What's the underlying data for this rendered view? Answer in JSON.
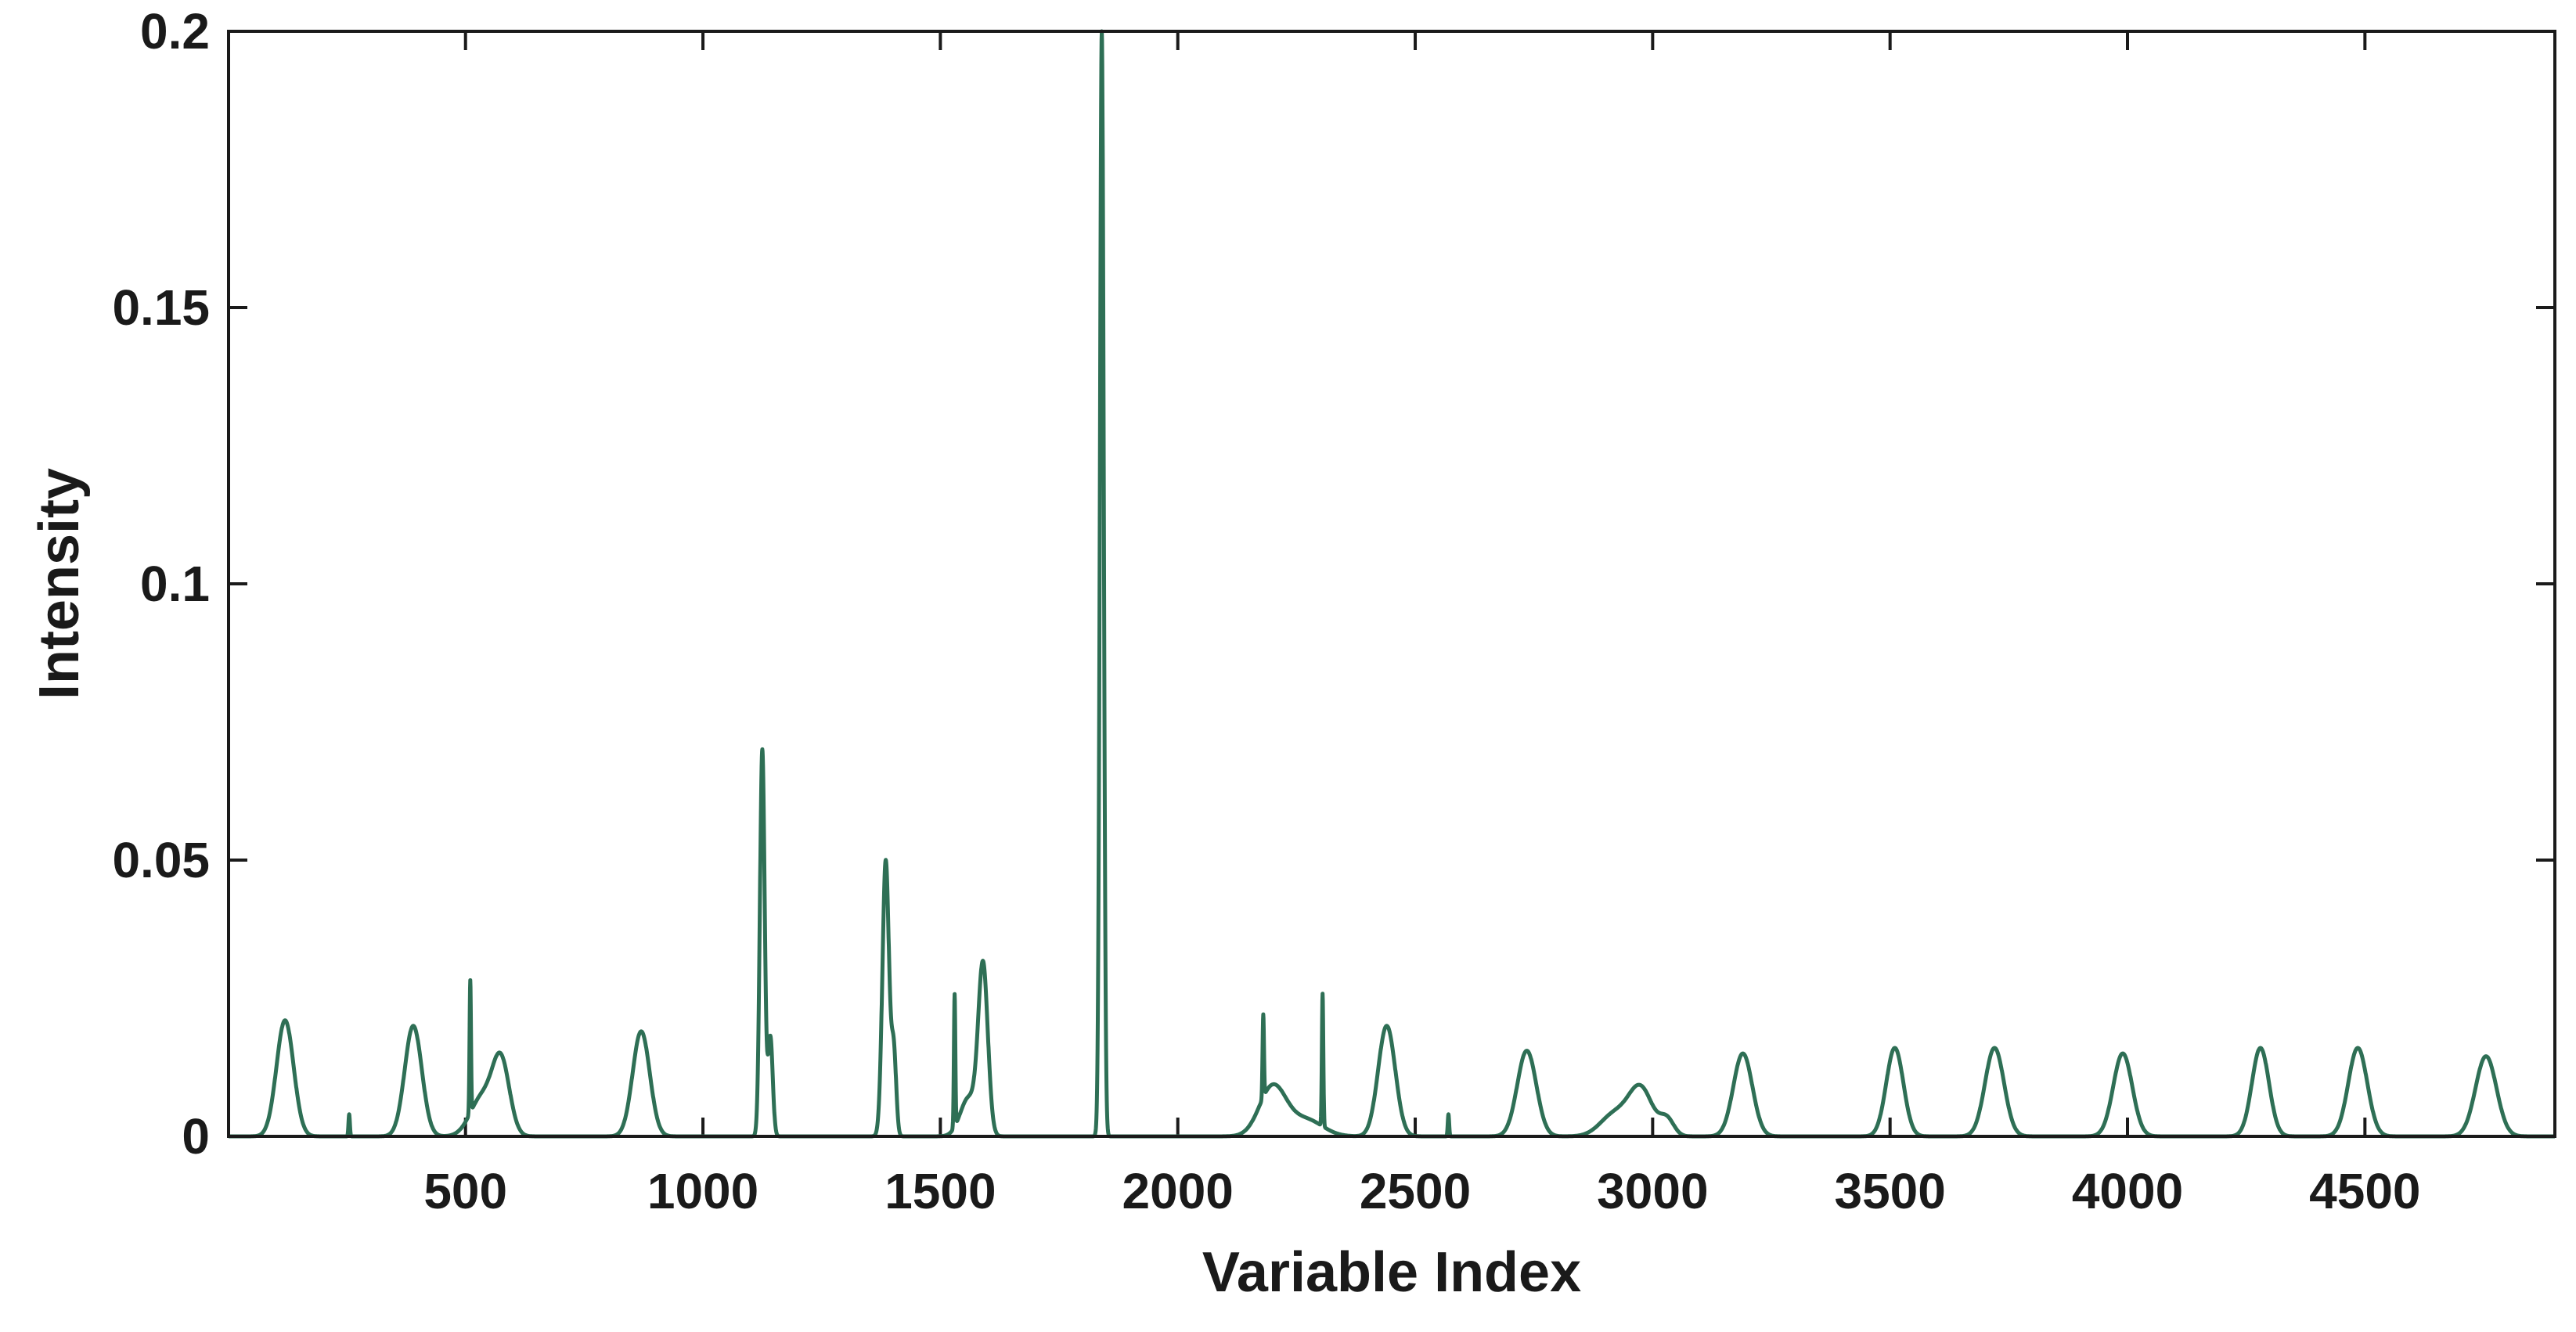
{
  "chart_data": {
    "type": "line",
    "title": "",
    "xlabel": "Variable Index",
    "ylabel": "Intensity",
    "xlim": [
      1,
      4900
    ],
    "ylim": [
      0,
      0.2
    ],
    "x_ticks": [
      500,
      1000,
      1500,
      2000,
      2500,
      3000,
      3500,
      4000,
      4500
    ],
    "x_tick_labels": [
      "500",
      "1000",
      "1500",
      "2000",
      "2500",
      "3000",
      "3500",
      "4000",
      "4500"
    ],
    "y_ticks": [
      0,
      0.05,
      0.1,
      0.15,
      0.2
    ],
    "y_tick_labels": [
      "0",
      "0.05",
      "0.1",
      "0.15",
      "0.2"
    ],
    "grid": false,
    "legend": "none",
    "line_color": "#2e6f55",
    "series": [
      {
        "peaks": [
          {
            "center": 120,
            "height": 0.021,
            "width": 18
          },
          {
            "center": 255,
            "height": 0.004,
            "width": 1.5
          },
          {
            "center": 390,
            "height": 0.02,
            "width": 18
          },
          {
            "center": 510,
            "height": 0.024,
            "width": 1.5
          },
          {
            "center": 535,
            "height": 0.007,
            "width": 25
          },
          {
            "center": 575,
            "height": 0.013,
            "width": 18
          },
          {
            "center": 870,
            "height": 0.019,
            "width": 18
          },
          {
            "center": 1125,
            "height": 0.07,
            "width": 5
          },
          {
            "center": 1142,
            "height": 0.018,
            "width": 5
          },
          {
            "center": 1385,
            "height": 0.05,
            "width": 7
          },
          {
            "center": 1402,
            "height": 0.015,
            "width": 5
          },
          {
            "center": 1530,
            "height": 0.024,
            "width": 1.5
          },
          {
            "center": 1560,
            "height": 0.007,
            "width": 18
          },
          {
            "center": 1590,
            "height": 0.03,
            "width": 10
          },
          {
            "center": 1840,
            "height": 0.2,
            "width": 4
          },
          {
            "center": 2180,
            "height": 0.015,
            "width": 1.5
          },
          {
            "center": 2200,
            "height": 0.009,
            "width": 28
          },
          {
            "center": 2270,
            "height": 0.003,
            "width": 35
          },
          {
            "center": 2305,
            "height": 0.024,
            "width": 1.5
          },
          {
            "center": 2440,
            "height": 0.02,
            "width": 18
          },
          {
            "center": 2570,
            "height": 0.004,
            "width": 1.5
          },
          {
            "center": 2735,
            "height": 0.0155,
            "width": 20
          },
          {
            "center": 2920,
            "height": 0.004,
            "width": 30
          },
          {
            "center": 2975,
            "height": 0.0085,
            "width": 25
          },
          {
            "center": 3030,
            "height": 0.003,
            "width": 15
          },
          {
            "center": 3190,
            "height": 0.015,
            "width": 20
          },
          {
            "center": 3510,
            "height": 0.016,
            "width": 18
          },
          {
            "center": 3720,
            "height": 0.016,
            "width": 20
          },
          {
            "center": 3990,
            "height": 0.015,
            "width": 20
          },
          {
            "center": 4280,
            "height": 0.016,
            "width": 18
          },
          {
            "center": 4485,
            "height": 0.016,
            "width": 20
          },
          {
            "center": 4755,
            "height": 0.0145,
            "width": 22
          }
        ]
      }
    ]
  }
}
